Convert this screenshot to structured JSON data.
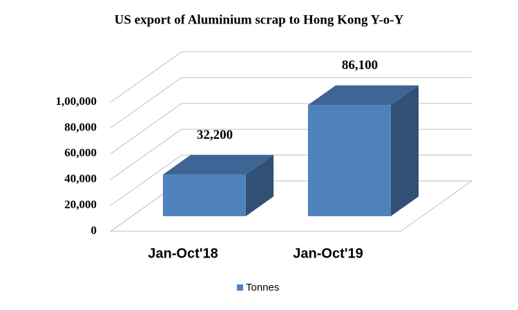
{
  "chart_data": {
    "type": "bar3d",
    "title": "US export of Aluminium scrap to Hong Kong Y-o-Y",
    "categories": [
      "Jan-Oct'18",
      "Jan-Oct'19"
    ],
    "series": [
      {
        "name": "Tonnes",
        "color": "#4f81bd",
        "values": [
          32200,
          86100
        ],
        "value_labels": [
          "32,200",
          "86,100"
        ]
      }
    ],
    "ylim": [
      0,
      100000
    ],
    "yticks": [
      0,
      {
        "value": 20000,
        "label": "20,000"
      },
      {
        "value": 40000,
        "label": "40,000"
      },
      {
        "value": 60000,
        "label": "60,000"
      },
      {
        "value": 80000,
        "label": "80,000"
      },
      {
        "value": 100000,
        "label": "1,00,000"
      }
    ],
    "grid": true,
    "legend": "bottom"
  }
}
